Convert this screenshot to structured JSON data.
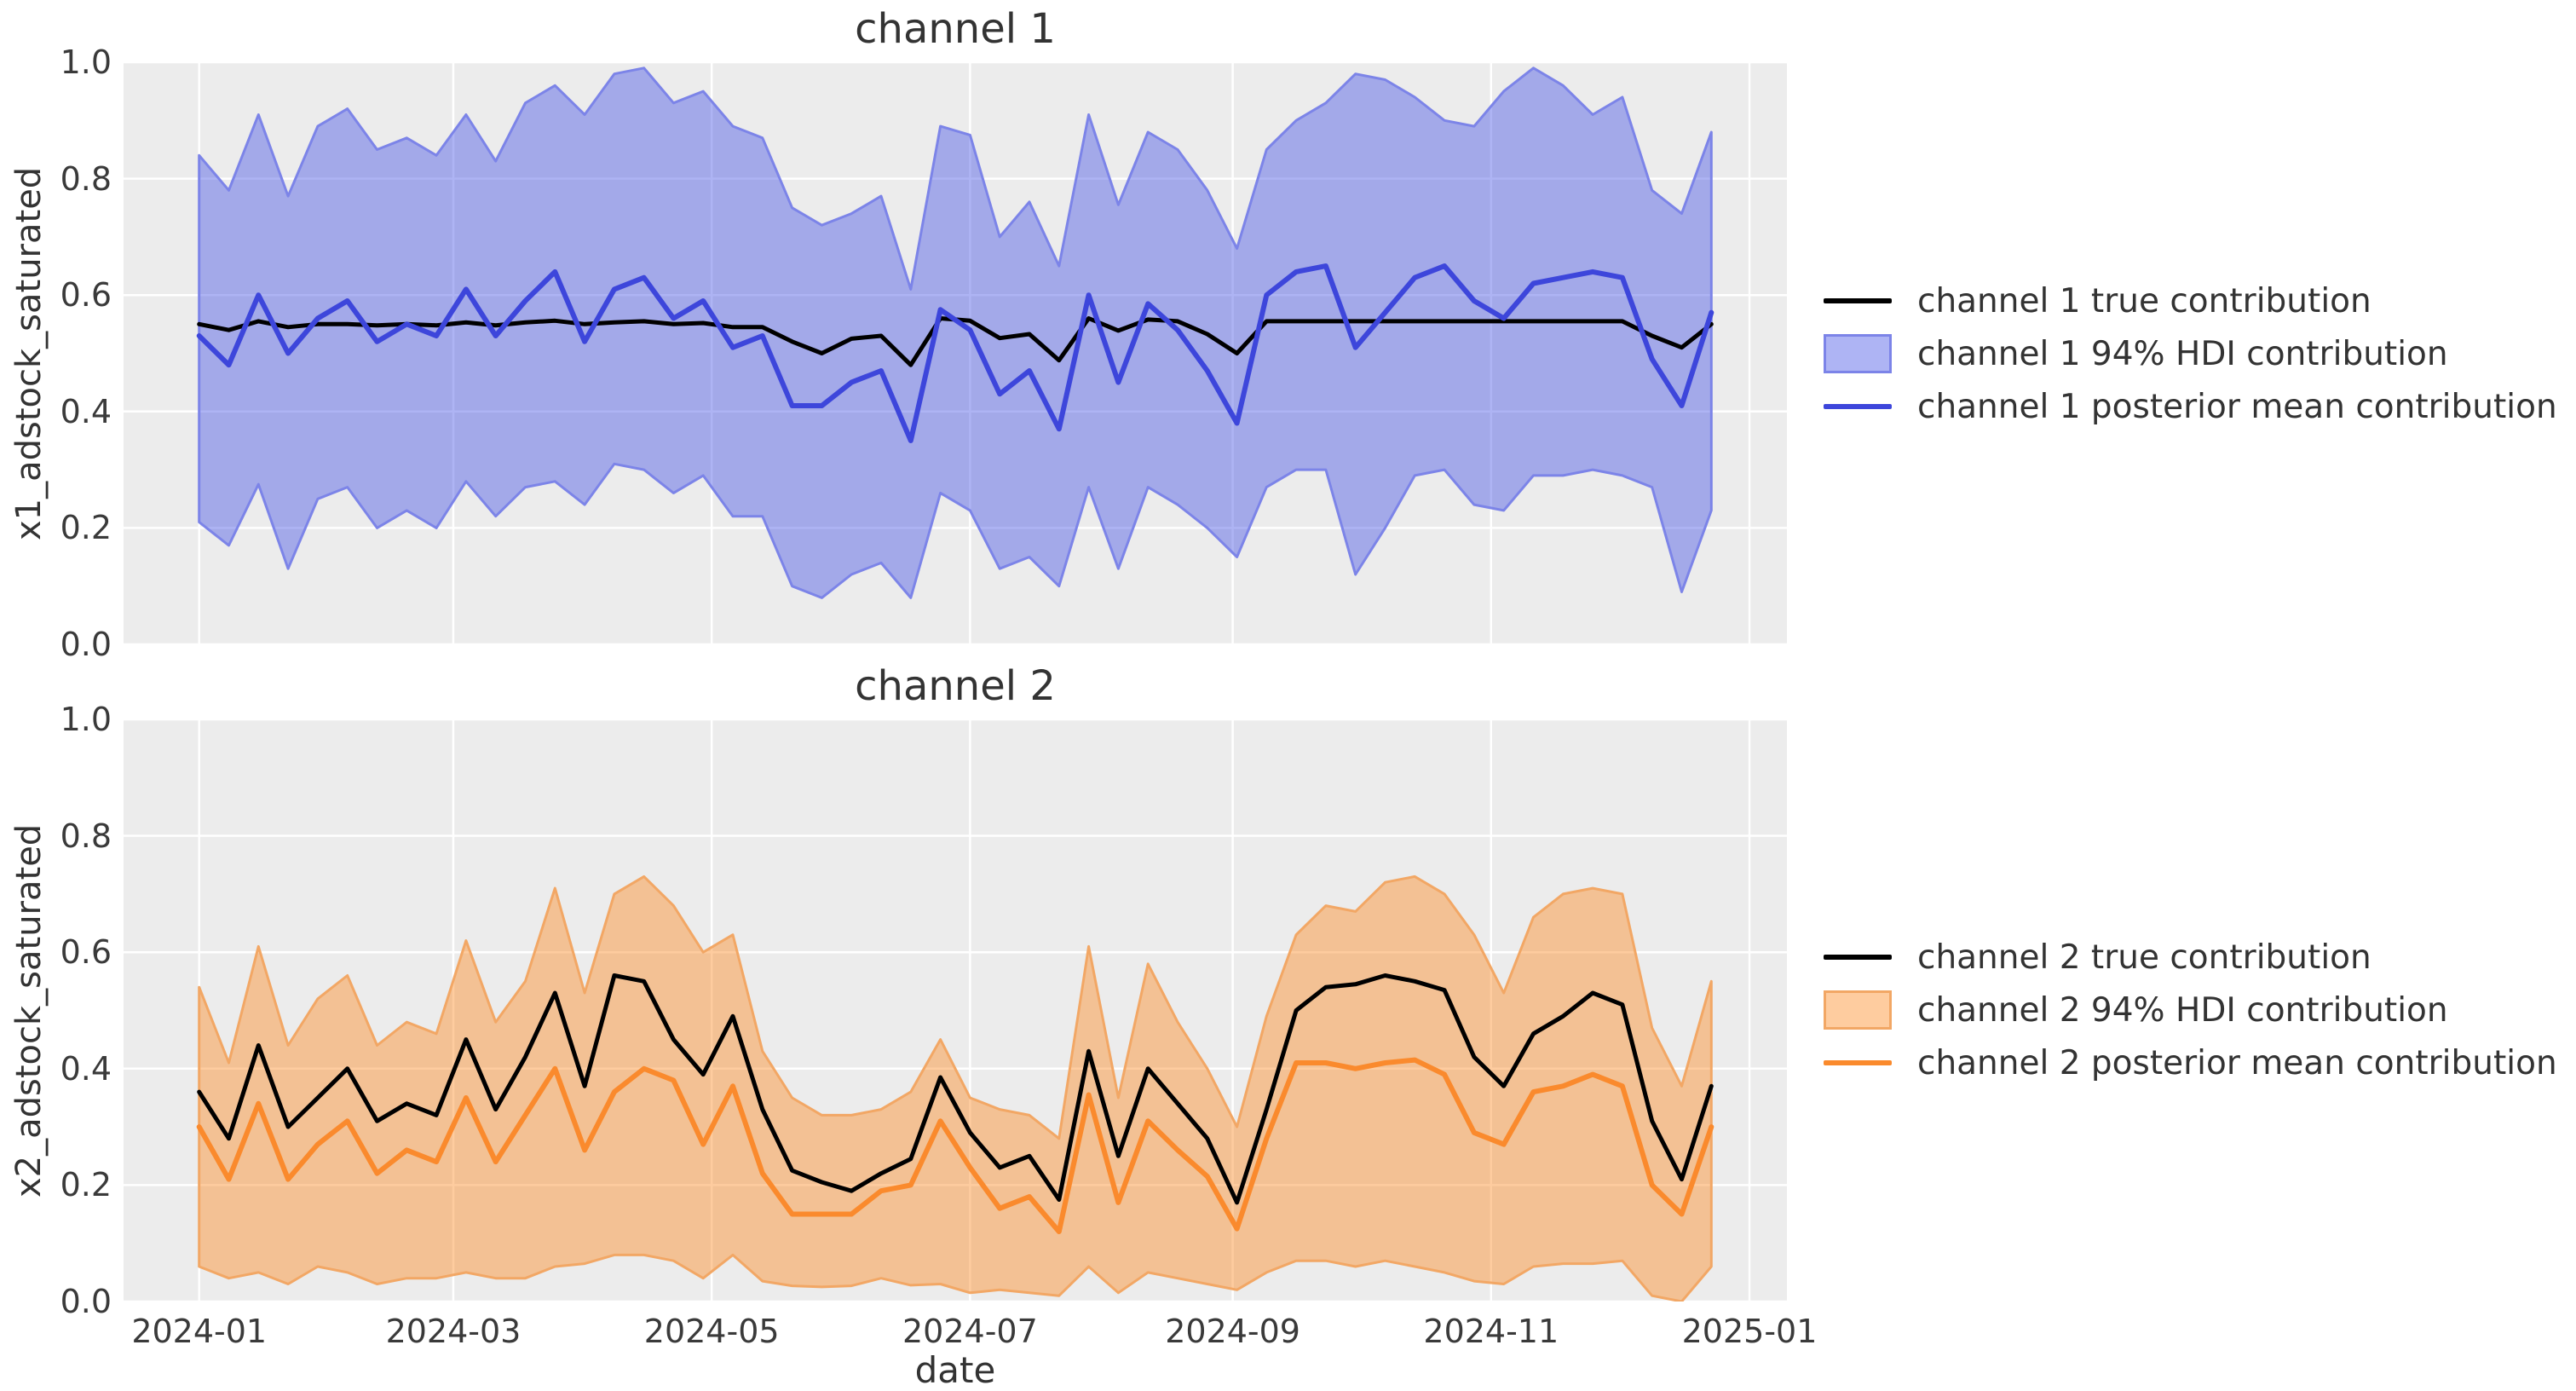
{
  "colors": {
    "page_background": "#ffffff",
    "axes_background": "#ECECEC",
    "grid": "#FFFFFF",
    "true_line": "#000000",
    "channel1_mean_line": "#3D46DB",
    "channel1_band_fill": "rgba(76,88,230,0.45)",
    "channel1_band_edge": "#7C84E8",
    "channel2_mean_line": "#FA8A2D",
    "channel2_band_fill": "rgba(252,133,26,0.42)",
    "channel2_band_edge": "#F2A765",
    "text": "#333333"
  },
  "figure": {
    "xlabel": "date"
  },
  "chart_data": [
    {
      "type": "line",
      "title": "channel 1",
      "ylabel": "x1_adstock_saturated",
      "xlabel": "",
      "ylim": [
        0.0,
        1.0
      ],
      "yticks": [
        {
          "value": 0.0,
          "label": "0.0"
        },
        {
          "value": 0.2,
          "label": "0.2"
        },
        {
          "value": 0.4,
          "label": "0.4"
        },
        {
          "value": 0.6,
          "label": "0.6"
        },
        {
          "value": 0.8,
          "label": "0.8"
        },
        {
          "value": 1.0,
          "label": "1.0"
        }
      ],
      "xlim_days": [
        -17.85,
        374.85
      ],
      "xticks": [
        {
          "day": 0,
          "label": "2024-01"
        },
        {
          "day": 60,
          "label": "2024-03"
        },
        {
          "day": 121,
          "label": "2024-05"
        },
        {
          "day": 182,
          "label": "2024-07"
        },
        {
          "day": 244,
          "label": "2024-09"
        },
        {
          "day": 305,
          "label": "2024-11"
        },
        {
          "day": 366,
          "label": "2025-01"
        }
      ],
      "show_x_tick_labels": false,
      "grid": true,
      "legend_position": "right",
      "x_step_days": 7,
      "x": [
        "2024-01-01",
        "2024-01-08",
        "2024-01-15",
        "2024-01-22",
        "2024-01-29",
        "2024-02-05",
        "2024-02-12",
        "2024-02-19",
        "2024-02-26",
        "2024-03-04",
        "2024-03-11",
        "2024-03-18",
        "2024-03-25",
        "2024-04-01",
        "2024-04-08",
        "2024-04-15",
        "2024-04-22",
        "2024-04-29",
        "2024-05-06",
        "2024-05-13",
        "2024-05-20",
        "2024-05-27",
        "2024-06-03",
        "2024-06-10",
        "2024-06-17",
        "2024-06-24",
        "2024-07-01",
        "2024-07-08",
        "2024-07-15",
        "2024-07-22",
        "2024-07-29",
        "2024-08-05",
        "2024-08-12",
        "2024-08-19",
        "2024-08-26",
        "2024-09-02",
        "2024-09-09",
        "2024-09-16",
        "2024-09-23",
        "2024-09-30",
        "2024-10-07",
        "2024-10-14",
        "2024-10-21",
        "2024-10-28",
        "2024-11-04",
        "2024-11-11",
        "2024-11-18",
        "2024-11-25",
        "2024-12-02",
        "2024-12-09",
        "2024-12-16",
        "2024-12-23"
      ],
      "band": {
        "name": "channel 1 94% HDI contribution",
        "fill": "rgba(76,88,230,0.45)",
        "edge": "#7C84E8",
        "upper": [
          0.84,
          0.78,
          0.91,
          0.77,
          0.89,
          0.92,
          0.85,
          0.87,
          0.84,
          0.91,
          0.83,
          0.93,
          0.96,
          0.91,
          0.98,
          0.99,
          0.93,
          0.95,
          0.89,
          0.87,
          0.75,
          0.72,
          0.74,
          0.77,
          0.61,
          0.89,
          0.875,
          0.7,
          0.76,
          0.65,
          0.91,
          0.755,
          0.88,
          0.85,
          0.78,
          0.68,
          0.85,
          0.9,
          0.93,
          0.98,
          0.97,
          0.94,
          0.9,
          0.89,
          0.95,
          0.99,
          0.96,
          0.91,
          0.94,
          0.78,
          0.74,
          0.88
        ],
        "lower": [
          0.21,
          0.17,
          0.275,
          0.13,
          0.25,
          0.27,
          0.2,
          0.23,
          0.2,
          0.28,
          0.22,
          0.27,
          0.28,
          0.24,
          0.31,
          0.3,
          0.26,
          0.29,
          0.22,
          0.22,
          0.1,
          0.08,
          0.12,
          0.14,
          0.08,
          0.26,
          0.23,
          0.13,
          0.15,
          0.1,
          0.27,
          0.13,
          0.27,
          0.24,
          0.2,
          0.15,
          0.27,
          0.3,
          0.3,
          0.12,
          0.2,
          0.29,
          0.3,
          0.24,
          0.23,
          0.29,
          0.29,
          0.3,
          0.29,
          0.27,
          0.09,
          0.23
        ]
      },
      "series": [
        {
          "name": "channel 1 true contribution",
          "role": "true",
          "color": "#000000",
          "width": 5,
          "values": [
            0.55,
            0.54,
            0.555,
            0.545,
            0.55,
            0.55,
            0.548,
            0.55,
            0.548,
            0.553,
            0.548,
            0.553,
            0.556,
            0.55,
            0.553,
            0.555,
            0.55,
            0.552,
            0.545,
            0.545,
            0.52,
            0.5,
            0.525,
            0.53,
            0.48,
            0.56,
            0.556,
            0.526,
            0.533,
            0.488,
            0.56,
            0.539,
            0.558,
            0.555,
            0.533,
            0.5,
            0.555,
            0.555,
            0.555,
            0.555,
            0.555,
            0.555,
            0.555,
            0.555,
            0.555,
            0.555,
            0.555,
            0.555,
            0.555,
            0.53,
            0.51,
            0.55
          ]
        },
        {
          "name": "channel 1 posterior mean contribution",
          "role": "mean",
          "color": "#3D46DB",
          "width": 6,
          "values": [
            0.53,
            0.48,
            0.6,
            0.5,
            0.56,
            0.59,
            0.52,
            0.55,
            0.53,
            0.61,
            0.53,
            0.59,
            0.64,
            0.52,
            0.61,
            0.63,
            0.56,
            0.59,
            0.51,
            0.53,
            0.41,
            0.41,
            0.45,
            0.47,
            0.35,
            0.575,
            0.54,
            0.43,
            0.47,
            0.37,
            0.6,
            0.45,
            0.585,
            0.54,
            0.47,
            0.38,
            0.6,
            0.64,
            0.65,
            0.51,
            0.57,
            0.63,
            0.65,
            0.59,
            0.56,
            0.62,
            0.63,
            0.64,
            0.63,
            0.49,
            0.41,
            0.57
          ]
        }
      ],
      "legend": [
        {
          "label": "channel 1 true contribution",
          "type": "line",
          "color": "#000000"
        },
        {
          "label": "channel 1 94% HDI contribution",
          "type": "patch",
          "fill": "rgba(76,88,230,0.45)",
          "edge": "#7C84E8"
        },
        {
          "label": "channel 1 posterior mean contribution",
          "type": "line",
          "color": "#3D46DB"
        }
      ]
    },
    {
      "type": "line",
      "title": "channel 2",
      "ylabel": "x2_adstock_saturated",
      "xlabel": "date",
      "ylim": [
        0.0,
        1.0
      ],
      "yticks": [
        {
          "value": 0.0,
          "label": "0.0"
        },
        {
          "value": 0.2,
          "label": "0.2"
        },
        {
          "value": 0.4,
          "label": "0.4"
        },
        {
          "value": 0.6,
          "label": "0.6"
        },
        {
          "value": 0.8,
          "label": "0.8"
        },
        {
          "value": 1.0,
          "label": "1.0"
        }
      ],
      "xlim_days": [
        -17.85,
        374.85
      ],
      "xticks": [
        {
          "day": 0,
          "label": "2024-01"
        },
        {
          "day": 60,
          "label": "2024-03"
        },
        {
          "day": 121,
          "label": "2024-05"
        },
        {
          "day": 182,
          "label": "2024-07"
        },
        {
          "day": 244,
          "label": "2024-09"
        },
        {
          "day": 305,
          "label": "2024-11"
        },
        {
          "day": 366,
          "label": "2025-01"
        }
      ],
      "show_x_tick_labels": true,
      "grid": true,
      "legend_position": "right",
      "x_step_days": 7,
      "x": [
        "2024-01-01",
        "2024-01-08",
        "2024-01-15",
        "2024-01-22",
        "2024-01-29",
        "2024-02-05",
        "2024-02-12",
        "2024-02-19",
        "2024-02-26",
        "2024-03-04",
        "2024-03-11",
        "2024-03-18",
        "2024-03-25",
        "2024-04-01",
        "2024-04-08",
        "2024-04-15",
        "2024-04-22",
        "2024-04-29",
        "2024-05-06",
        "2024-05-13",
        "2024-05-20",
        "2024-05-27",
        "2024-06-03",
        "2024-06-10",
        "2024-06-17",
        "2024-06-24",
        "2024-07-01",
        "2024-07-08",
        "2024-07-15",
        "2024-07-22",
        "2024-07-29",
        "2024-08-05",
        "2024-08-12",
        "2024-08-19",
        "2024-08-26",
        "2024-09-02",
        "2024-09-09",
        "2024-09-16",
        "2024-09-23",
        "2024-09-30",
        "2024-10-07",
        "2024-10-14",
        "2024-10-21",
        "2024-10-28",
        "2024-11-04",
        "2024-11-11",
        "2024-11-18",
        "2024-11-25",
        "2024-12-02",
        "2024-12-09",
        "2024-12-16",
        "2024-12-23"
      ],
      "band": {
        "name": "channel 2 94% HDI contribution",
        "fill": "rgba(252,133,26,0.42)",
        "edge": "#F2A765",
        "upper": [
          0.54,
          0.41,
          0.61,
          0.44,
          0.52,
          0.56,
          0.44,
          0.48,
          0.46,
          0.62,
          0.48,
          0.55,
          0.71,
          0.53,
          0.7,
          0.73,
          0.68,
          0.6,
          0.63,
          0.43,
          0.35,
          0.32,
          0.32,
          0.33,
          0.36,
          0.45,
          0.35,
          0.33,
          0.32,
          0.28,
          0.61,
          0.35,
          0.58,
          0.48,
          0.4,
          0.3,
          0.49,
          0.63,
          0.68,
          0.67,
          0.72,
          0.73,
          0.7,
          0.63,
          0.53,
          0.66,
          0.7,
          0.71,
          0.7,
          0.47,
          0.37,
          0.55
        ],
        "lower": [
          0.06,
          0.04,
          0.05,
          0.03,
          0.06,
          0.05,
          0.03,
          0.04,
          0.04,
          0.05,
          0.04,
          0.04,
          0.06,
          0.065,
          0.08,
          0.08,
          0.07,
          0.04,
          0.08,
          0.035,
          0.027,
          0.025,
          0.027,
          0.04,
          0.028,
          0.03,
          0.015,
          0.02,
          0.015,
          0.01,
          0.06,
          0.015,
          0.05,
          0.04,
          0.03,
          0.02,
          0.05,
          0.07,
          0.07,
          0.06,
          0.07,
          0.06,
          0.05,
          0.035,
          0.03,
          0.06,
          0.065,
          0.065,
          0.07,
          0.01,
          0.0,
          0.06
        ]
      },
      "series": [
        {
          "name": "channel 2 true contribution",
          "role": "true",
          "color": "#000000",
          "width": 5,
          "values": [
            0.36,
            0.28,
            0.44,
            0.3,
            0.35,
            0.4,
            0.31,
            0.34,
            0.32,
            0.45,
            0.33,
            0.42,
            0.53,
            0.37,
            0.56,
            0.55,
            0.45,
            0.39,
            0.49,
            0.33,
            0.225,
            0.205,
            0.19,
            0.22,
            0.245,
            0.385,
            0.29,
            0.23,
            0.25,
            0.175,
            0.43,
            0.25,
            0.4,
            0.34,
            0.28,
            0.17,
            0.33,
            0.5,
            0.54,
            0.545,
            0.56,
            0.55,
            0.535,
            0.42,
            0.37,
            0.46,
            0.49,
            0.53,
            0.51,
            0.31,
            0.21,
            0.37
          ]
        },
        {
          "name": "channel 2 posterior mean contribution",
          "role": "mean",
          "color": "#FA8A2D",
          "width": 6,
          "values": [
            0.3,
            0.21,
            0.34,
            0.21,
            0.27,
            0.31,
            0.22,
            0.26,
            0.24,
            0.35,
            0.24,
            0.32,
            0.4,
            0.26,
            0.36,
            0.4,
            0.38,
            0.27,
            0.37,
            0.22,
            0.15,
            0.15,
            0.15,
            0.19,
            0.2,
            0.31,
            0.23,
            0.16,
            0.18,
            0.12,
            0.355,
            0.17,
            0.31,
            0.26,
            0.215,
            0.125,
            0.28,
            0.41,
            0.41,
            0.4,
            0.41,
            0.415,
            0.39,
            0.29,
            0.27,
            0.36,
            0.37,
            0.39,
            0.37,
            0.2,
            0.15,
            0.3
          ]
        }
      ],
      "legend": [
        {
          "label": "channel 2 true contribution",
          "type": "line",
          "color": "#000000"
        },
        {
          "label": "channel 2 94% HDI contribution",
          "type": "patch",
          "fill": "rgba(252,133,26,0.42)",
          "edge": "#F2A765"
        },
        {
          "label": "channel 2 posterior mean contribution",
          "type": "line",
          "color": "#FA8A2D"
        }
      ]
    }
  ]
}
